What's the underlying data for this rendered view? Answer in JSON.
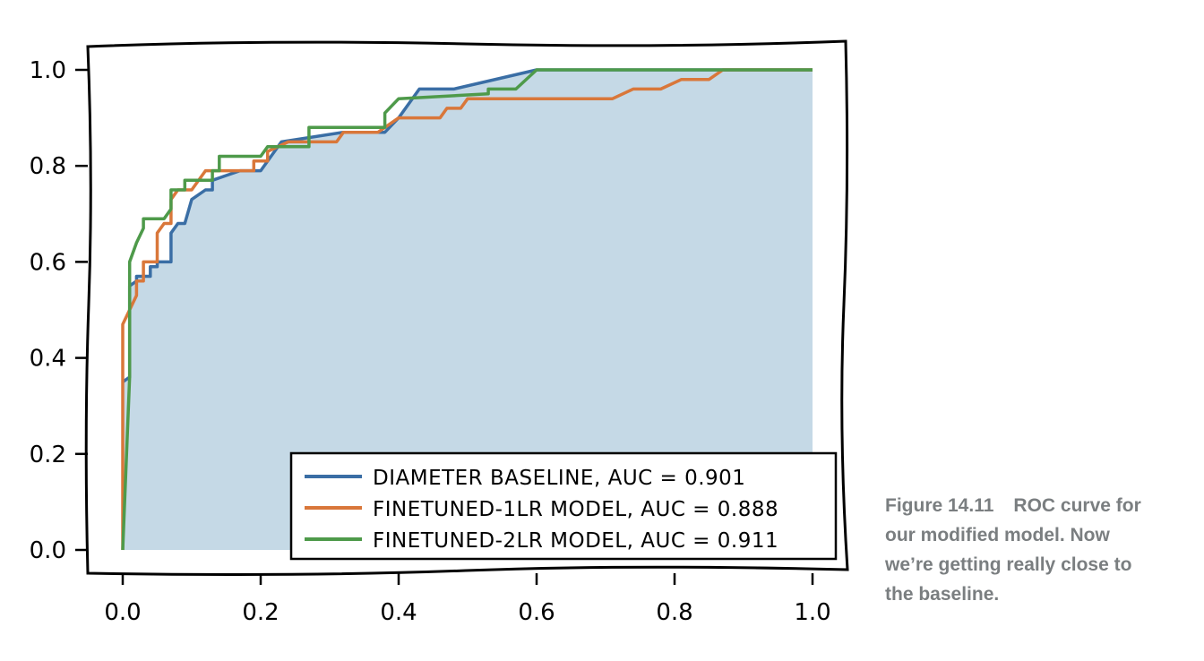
{
  "chart_data": {
    "type": "line",
    "xlim": [
      0.0,
      1.0
    ],
    "ylim": [
      0.0,
      1.0
    ],
    "x_ticks": [
      "0.0",
      "0.2",
      "0.4",
      "0.6",
      "0.8",
      "1.0"
    ],
    "y_ticks": [
      "0.0",
      "0.2",
      "0.4",
      "0.6",
      "0.8",
      "1.0"
    ],
    "grid": false,
    "legend_position": "bottom-right",
    "shaded_area": "under diameter baseline curve",
    "series": [
      {
        "name": "DIAMETER BASELINE, AUC = 0.901",
        "color": "#3a6ea5",
        "points": [
          [
            0.0,
            0.35
          ],
          [
            0.01,
            0.36
          ],
          [
            0.01,
            0.55
          ],
          [
            0.02,
            0.56
          ],
          [
            0.02,
            0.57
          ],
          [
            0.04,
            0.57
          ],
          [
            0.04,
            0.59
          ],
          [
            0.05,
            0.59
          ],
          [
            0.05,
            0.6
          ],
          [
            0.07,
            0.6
          ],
          [
            0.07,
            0.66
          ],
          [
            0.08,
            0.68
          ],
          [
            0.09,
            0.68
          ],
          [
            0.1,
            0.73
          ],
          [
            0.12,
            0.75
          ],
          [
            0.13,
            0.75
          ],
          [
            0.13,
            0.77
          ],
          [
            0.17,
            0.79
          ],
          [
            0.2,
            0.79
          ],
          [
            0.22,
            0.83
          ],
          [
            0.23,
            0.85
          ],
          [
            0.32,
            0.87
          ],
          [
            0.38,
            0.87
          ],
          [
            0.4,
            0.9
          ],
          [
            0.43,
            0.96
          ],
          [
            0.48,
            0.96
          ],
          [
            0.6,
            1.0
          ],
          [
            1.0,
            1.0
          ]
        ]
      },
      {
        "name": "FINETUNED-1LR MODEL, AUC = 0.888",
        "color": "#d9773a",
        "points": [
          [
            0.0,
            0.0
          ],
          [
            0.0,
            0.47
          ],
          [
            0.01,
            0.5
          ],
          [
            0.02,
            0.53
          ],
          [
            0.02,
            0.56
          ],
          [
            0.03,
            0.56
          ],
          [
            0.03,
            0.6
          ],
          [
            0.05,
            0.6
          ],
          [
            0.05,
            0.66
          ],
          [
            0.06,
            0.68
          ],
          [
            0.07,
            0.68
          ],
          [
            0.07,
            0.73
          ],
          [
            0.08,
            0.75
          ],
          [
            0.1,
            0.75
          ],
          [
            0.12,
            0.79
          ],
          [
            0.19,
            0.79
          ],
          [
            0.19,
            0.81
          ],
          [
            0.21,
            0.81
          ],
          [
            0.21,
            0.83
          ],
          [
            0.24,
            0.85
          ],
          [
            0.31,
            0.85
          ],
          [
            0.32,
            0.87
          ],
          [
            0.37,
            0.87
          ],
          [
            0.4,
            0.9
          ],
          [
            0.46,
            0.9
          ],
          [
            0.47,
            0.92
          ],
          [
            0.49,
            0.92
          ],
          [
            0.5,
            0.94
          ],
          [
            0.71,
            0.94
          ],
          [
            0.74,
            0.96
          ],
          [
            0.78,
            0.96
          ],
          [
            0.81,
            0.98
          ],
          [
            0.85,
            0.98
          ],
          [
            0.87,
            1.0
          ],
          [
            1.0,
            1.0
          ]
        ]
      },
      {
        "name": "FINETUNED-2LR MODEL, AUC = 0.911",
        "color": "#4e9a4a",
        "points": [
          [
            0.0,
            0.0
          ],
          [
            0.01,
            0.36
          ],
          [
            0.01,
            0.6
          ],
          [
            0.02,
            0.64
          ],
          [
            0.03,
            0.67
          ],
          [
            0.03,
            0.69
          ],
          [
            0.06,
            0.69
          ],
          [
            0.07,
            0.71
          ],
          [
            0.07,
            0.75
          ],
          [
            0.09,
            0.75
          ],
          [
            0.09,
            0.77
          ],
          [
            0.13,
            0.77
          ],
          [
            0.13,
            0.79
          ],
          [
            0.14,
            0.79
          ],
          [
            0.14,
            0.82
          ],
          [
            0.2,
            0.82
          ],
          [
            0.21,
            0.84
          ],
          [
            0.27,
            0.84
          ],
          [
            0.27,
            0.88
          ],
          [
            0.38,
            0.88
          ],
          [
            0.38,
            0.91
          ],
          [
            0.4,
            0.94
          ],
          [
            0.53,
            0.95
          ],
          [
            0.53,
            0.96
          ],
          [
            0.57,
            0.96
          ],
          [
            0.6,
            1.0
          ],
          [
            1.0,
            1.0
          ]
        ]
      }
    ]
  },
  "caption": {
    "label": "Figure 14.11",
    "text": "ROC curve for our modified model. Now we’re getting really close to the baseline."
  }
}
